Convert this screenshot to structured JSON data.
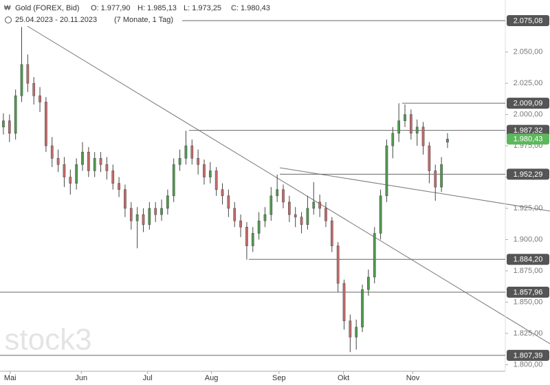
{
  "chart_data": {
    "type": "candlestick",
    "title": "Gold (FOREX, Bid)",
    "header_ohlc": [
      "O: 1.977,90",
      "H: 1.985,13",
      "L: 1.973,25",
      "C: 1.980,43"
    ],
    "period": "25.04.2023 - 20.11.2023",
    "period_note": "(7 Monate, 1 Tag)",
    "watermark": "stock3",
    "up_color": "#4f9a4f",
    "down_color": "#c46a6a",
    "open": [
      1990,
      1995,
      1985,
      2015,
      2040,
      2025,
      2015,
      2010,
      1975,
      1965,
      1960,
      1950,
      1945,
      1960,
      1970,
      1955,
      1965,
      1960,
      1955,
      1945,
      1940,
      1925,
      1915,
      1920,
      1912,
      1925,
      1920,
      1925,
      1935,
      1960,
      1965,
      1975,
      1965,
      1960,
      1950,
      1955,
      1940,
      1935,
      1925,
      1915,
      1910,
      1895,
      1905,
      1915,
      1920,
      1935,
      1940,
      1930,
      1920,
      1918,
      1912,
      1925,
      1930,
      1925,
      1915,
      1895,
      1865,
      1835,
      1822,
      1830,
      1860,
      1870,
      1905,
      1935,
      1975,
      1985,
      1995,
      2000,
      1985,
      1990,
      1975,
      1955,
      1942,
      1977.9
    ],
    "high": [
      2001,
      2000,
      2020,
      2070,
      2048,
      2030,
      2022,
      2014,
      1982,
      1972,
      1966,
      1956,
      1965,
      1978,
      1974,
      1970,
      1970,
      1966,
      1960,
      1950,
      1944,
      1930,
      1926,
      1925,
      1930,
      1930,
      1932,
      1940,
      1965,
      1972,
      1987,
      1980,
      1972,
      1964,
      1962,
      1958,
      1945,
      1940,
      1930,
      1920,
      1914,
      1910,
      1922,
      1926,
      1942,
      1952,
      1944,
      1935,
      1926,
      1922,
      1935,
      1946,
      1936,
      1930,
      1918,
      1898,
      1868,
      1840,
      1836,
      1864,
      1876,
      1910,
      1940,
      1980,
      1990,
      2009,
      2008,
      2004,
      1996,
      1994,
      1978,
      1960,
      1966,
      1985.13
    ],
    "low": [
      1984,
      1978,
      1980,
      2010,
      2018,
      2008,
      2002,
      1970,
      1958,
      1954,
      1942,
      1936,
      1940,
      1955,
      1950,
      1950,
      1954,
      1948,
      1940,
      1934,
      1918,
      1908,
      1893,
      1906,
      1908,
      1914,
      1915,
      1920,
      1930,
      1955,
      1960,
      1960,
      1952,
      1944,
      1945,
      1935,
      1928,
      1918,
      1910,
      1902,
      1884,
      1890,
      1900,
      1910,
      1915,
      1930,
      1925,
      1914,
      1910,
      1905,
      1908,
      1920,
      1918,
      1910,
      1890,
      1858,
      1828,
      1810,
      1812,
      1826,
      1855,
      1865,
      1900,
      1930,
      1965,
      1978,
      1990,
      1980,
      1975,
      1968,
      1945,
      1931,
      1938,
      1973.25
    ],
    "close": [
      1995,
      1985,
      2015,
      2040,
      2025,
      2015,
      2010,
      1975,
      1965,
      1960,
      1950,
      1945,
      1960,
      1970,
      1955,
      1965,
      1960,
      1955,
      1945,
      1940,
      1925,
      1915,
      1920,
      1912,
      1925,
      1920,
      1925,
      1935,
      1960,
      1965,
      1975,
      1965,
      1960,
      1950,
      1955,
      1940,
      1935,
      1925,
      1915,
      1910,
      1895,
      1905,
      1915,
      1920,
      1935,
      1940,
      1930,
      1920,
      1918,
      1912,
      1925,
      1930,
      1925,
      1915,
      1895,
      1865,
      1835,
      1822,
      1830,
      1860,
      1870,
      1905,
      1935,
      1975,
      1985,
      1995,
      2000,
      1985,
      1990,
      1975,
      1955,
      1942,
      1960,
      1980.43
    ],
    "xlim": [
      -0.56,
      82.5
    ],
    "xticks": [
      {
        "value": 1.1,
        "label": "Mai"
      },
      {
        "value": 12.8,
        "label": "Jun"
      },
      {
        "value": 23.7,
        "label": "Jul"
      },
      {
        "value": 34.2,
        "label": "Aug"
      },
      {
        "value": 45.3,
        "label": "Sep"
      },
      {
        "value": 55.9,
        "label": "Okt"
      },
      {
        "value": 67.3,
        "label": "Nov"
      }
    ],
    "ylim": [
      1794.7,
      2091.6
    ],
    "yticks": [
      {
        "value": 1800,
        "label": "1.800,00"
      },
      {
        "value": 1825,
        "label": "1.825,00"
      },
      {
        "value": 1850,
        "label": "1.850,00"
      },
      {
        "value": 1875,
        "label": "1.875,00"
      },
      {
        "value": 1900,
        "label": "1.900,00"
      },
      {
        "value": 1925,
        "label": "1.925,00"
      },
      {
        "value": 1950,
        "label": "1.950,00"
      },
      {
        "value": 1975,
        "label": "1.975,00"
      },
      {
        "value": 2000,
        "label": "2.000,00"
      },
      {
        "value": 2025,
        "label": "2.025,00"
      },
      {
        "value": 2050,
        "label": "2.050,00"
      }
    ],
    "levels": [
      {
        "value": 2075.08,
        "label": "2.075,08"
      },
      {
        "value": 2009.09,
        "label": "2.009,09"
      },
      {
        "value": 1987.32,
        "label": "1.987,32"
      },
      {
        "value": 1952.29,
        "label": "1.952,29"
      },
      {
        "value": 1884.2,
        "label": "1.884,20"
      },
      {
        "value": 1857.96,
        "label": "1.857,96"
      },
      {
        "value": 1807.39,
        "label": "1.807,39"
      }
    ],
    "current_price": {
      "value": 1980.43,
      "label": "1.980,43",
      "color": "#5cb85c"
    }
  }
}
